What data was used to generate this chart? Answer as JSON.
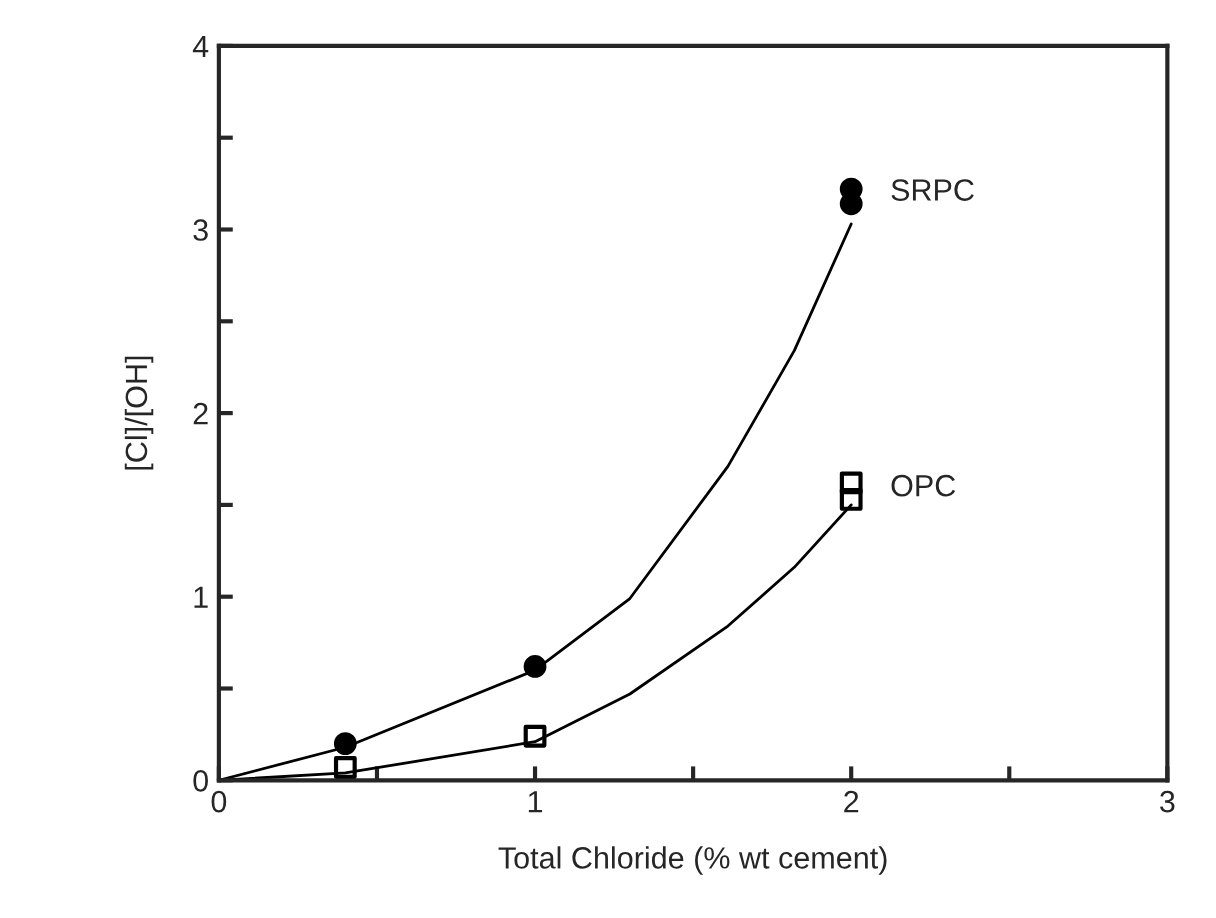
{
  "chart_data": {
    "type": "scatter",
    "xlabel": "Total Chloride (% wt cement)",
    "ylabel": "[Cl]/[OH]",
    "xlim": [
      0,
      3
    ],
    "ylim": [
      0,
      4
    ],
    "xticks": [
      0,
      {
        "value": 0.5,
        "label": null
      },
      1,
      {
        "value": 1.5,
        "label": null
      },
      2,
      {
        "value": 2.5,
        "label": null
      },
      3
    ],
    "yticks": [
      0,
      {
        "value": 0.5,
        "label": null
      },
      1,
      {
        "value": 1.5,
        "label": null
      },
      2,
      {
        "value": 2.5,
        "label": null
      },
      3,
      {
        "value": 3.5,
        "label": null
      },
      4
    ],
    "grid": false,
    "legend": false,
    "series": [
      {
        "name": "SRPC",
        "marker": "circle",
        "color": "#000000",
        "x": [
          0.4,
          1,
          2,
          2
        ],
        "values": [
          0.2,
          0.62,
          3.22,
          3.14
        ]
      },
      {
        "name": "OPC",
        "marker": "square",
        "color": "#000000",
        "x": [
          0.4,
          1,
          2,
          2
        ],
        "values": [
          0.07,
          0.24,
          1.62,
          1.53
        ]
      },
      {
        "type": "line",
        "color": "#000000",
        "x": [
          0,
          0.4,
          1,
          1.3,
          1.61,
          1.82,
          2.0
        ],
        "values": [
          0,
          0.18,
          0.6,
          0.99,
          1.71,
          2.34,
          3.03
        ]
      },
      {
        "type": "line",
        "color": "#000000",
        "x": [
          0,
          0.4,
          1,
          1.3,
          1.61,
          1.82,
          2.0
        ],
        "values": [
          0,
          0.04,
          0.21,
          0.47,
          0.84,
          1.16,
          1.5
        ]
      }
    ]
  }
}
